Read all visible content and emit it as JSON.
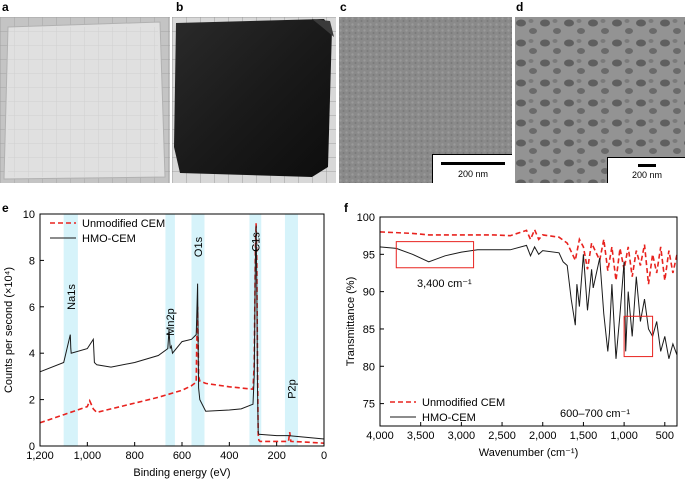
{
  "panels": {
    "a": {
      "letter": "a"
    },
    "b": {
      "letter": "b"
    },
    "c": {
      "letter": "c",
      "scale_label": "200 nm"
    },
    "d": {
      "letter": "d",
      "scale_label": "200 nm"
    },
    "e": {
      "letter": "e"
    },
    "f": {
      "letter": "f"
    }
  },
  "colors": {
    "unmodified": "#e8231f",
    "hmo": "#1a1a1a",
    "highlight": "#d6f3fa",
    "box": "#e8231f"
  },
  "chart_data": [
    {
      "id": "e",
      "type": "line",
      "xlabel": "Binding energy (eV)",
      "ylabel": "Counts per second (×10⁴)",
      "xlim": [
        1200,
        0
      ],
      "ylim": [
        0,
        10
      ],
      "xticks": [
        1200,
        1000,
        800,
        600,
        400,
        200,
        0
      ],
      "xtick_labels": [
        "1,200",
        "1,000",
        "800",
        "600",
        "400",
        "200",
        "0"
      ],
      "yticks": [
        0,
        2,
        4,
        6,
        8,
        10
      ],
      "legend": {
        "placement": "top-left"
      },
      "series": [
        {
          "name": "Unmodified CEM",
          "style": "dashed",
          "x": [
            1200,
            1100,
            1000,
            990,
            975,
            960,
            900,
            800,
            700,
            600,
            560,
            540,
            538,
            534,
            530,
            525,
            500,
            400,
            350,
            300,
            295,
            290,
            287,
            284,
            281,
            278,
            275,
            270,
            260,
            200,
            150,
            145,
            140,
            100,
            50,
            0
          ],
          "y": [
            1.0,
            1.35,
            1.7,
            1.95,
            1.6,
            1.45,
            1.6,
            1.85,
            2.1,
            2.4,
            2.6,
            2.75,
            4.3,
            6.0,
            3.0,
            2.8,
            2.7,
            2.55,
            2.5,
            2.45,
            3.5,
            8.5,
            9.6,
            8.0,
            3.5,
            0.5,
            0.25,
            0.2,
            0.2,
            0.2,
            0.2,
            0.6,
            0.2,
            0.18,
            0.15,
            0.12
          ]
        },
        {
          "name": "HMO-CEM",
          "style": "solid",
          "x": [
            1200,
            1100,
            1072,
            1070,
            1068,
            1000,
            975,
            970,
            960,
            900,
            800,
            700,
            660,
            655,
            650,
            645,
            640,
            600,
            560,
            540,
            538,
            534,
            530,
            525,
            500,
            400,
            350,
            300,
            295,
            290,
            287,
            284,
            281,
            278,
            275,
            270,
            200,
            150,
            100,
            50,
            0
          ],
          "y": [
            3.2,
            3.6,
            4.8,
            4.2,
            4.0,
            4.2,
            4.6,
            3.6,
            3.5,
            3.4,
            3.6,
            3.9,
            4.2,
            5.0,
            4.2,
            4.3,
            4.0,
            4.5,
            4.6,
            4.8,
            5.5,
            7.0,
            2.5,
            2.0,
            1.5,
            1.55,
            1.6,
            1.8,
            3.0,
            8.0,
            9.5,
            7.0,
            2.5,
            0.6,
            0.5,
            0.5,
            0.45,
            0.45,
            0.4,
            0.35,
            0.3
          ]
        }
      ],
      "highlights": [
        {
          "label": "Na1s",
          "x_range": [
            1100,
            1040
          ]
        },
        {
          "label": "Mn2p",
          "x_range": [
            670,
            630
          ]
        },
        {
          "label": "O1s",
          "x_range": [
            560,
            505
          ]
        },
        {
          "label": "C1s",
          "x_range": [
            315,
            265
          ]
        },
        {
          "label": "P2p",
          "x_range": [
            165,
            110
          ]
        }
      ]
    },
    {
      "id": "f",
      "type": "line",
      "xlabel": "Wavenumber (cm⁻¹)",
      "ylabel": "Transmittance (%)",
      "xlim": [
        4000,
        350
      ],
      "ylim": [
        72,
        100
      ],
      "xticks": [
        4000,
        3500,
        3000,
        2500,
        2000,
        1500,
        1000,
        500
      ],
      "xtick_labels": [
        "4,000",
        "3,500",
        "3,000",
        "2,500",
        "2,000",
        "1,500",
        "1,000",
        "500"
      ],
      "yticks": [
        75,
        80,
        85,
        90,
        95,
        100
      ],
      "legend": {
        "placement": "bottom-left"
      },
      "series": [
        {
          "name": "Unmodified CEM",
          "style": "dashed",
          "x": [
            4000,
            3600,
            3400,
            3000,
            2600,
            2400,
            2200,
            2150,
            2100,
            2050,
            2000,
            1800,
            1700,
            1600,
            1550,
            1500,
            1450,
            1400,
            1300,
            1250,
            1200,
            1150,
            1100,
            1050,
            1000,
            950,
            900,
            850,
            800,
            750,
            700,
            650,
            600,
            550,
            500,
            450,
            400,
            350
          ],
          "y": [
            98.0,
            97.8,
            97.6,
            97.6,
            97.6,
            97.5,
            98.2,
            97.0,
            98.3,
            97.0,
            97.6,
            97.3,
            96.5,
            94.2,
            97.0,
            96.0,
            93.0,
            96.5,
            94.2,
            97.0,
            92.8,
            96.0,
            91.5,
            95.8,
            93.0,
            96.0,
            92.0,
            95.5,
            93.5,
            96.3,
            91.0,
            95.0,
            92.5,
            96.0,
            91.5,
            95.5,
            92.5,
            95.0
          ]
        },
        {
          "name": "HMO-CEM",
          "style": "solid",
          "x": [
            4000,
            3800,
            3600,
            3400,
            3300,
            3200,
            3000,
            2800,
            2600,
            2400,
            2200,
            2150,
            2100,
            2050,
            2000,
            1800,
            1750,
            1700,
            1650,
            1600,
            1580,
            1550,
            1500,
            1450,
            1400,
            1380,
            1300,
            1250,
            1200,
            1180,
            1150,
            1100,
            1050,
            1000,
            980,
            950,
            900,
            850,
            800,
            750,
            700,
            650,
            600,
            550,
            500,
            450,
            400,
            350
          ],
          "y": [
            96.0,
            95.8,
            95.0,
            94.0,
            94.4,
            94.8,
            95.3,
            95.6,
            95.6,
            95.6,
            96.2,
            94.8,
            96.0,
            95.0,
            95.5,
            95.2,
            94.0,
            93.5,
            89.0,
            85.5,
            91.0,
            88.0,
            95.0,
            87.5,
            93.0,
            90.5,
            94.5,
            87.0,
            82.0,
            84.5,
            91.0,
            81.0,
            87.0,
            94.0,
            82.0,
            90.0,
            84.0,
            92.0,
            86.0,
            89.0,
            85.0,
            84.0,
            86.0,
            82.0,
            84.0,
            81.0,
            83.0,
            81.5
          ]
        }
      ],
      "annotations": [
        {
          "label": "3,400 cm⁻¹",
          "x_range": [
            3800,
            2850
          ],
          "y_range": [
            93.2,
            96.7
          ]
        },
        {
          "label": "600–700 cm⁻¹",
          "x_range": [
            1000,
            650
          ],
          "y_range": [
            81.3,
            86.7
          ]
        }
      ]
    }
  ]
}
